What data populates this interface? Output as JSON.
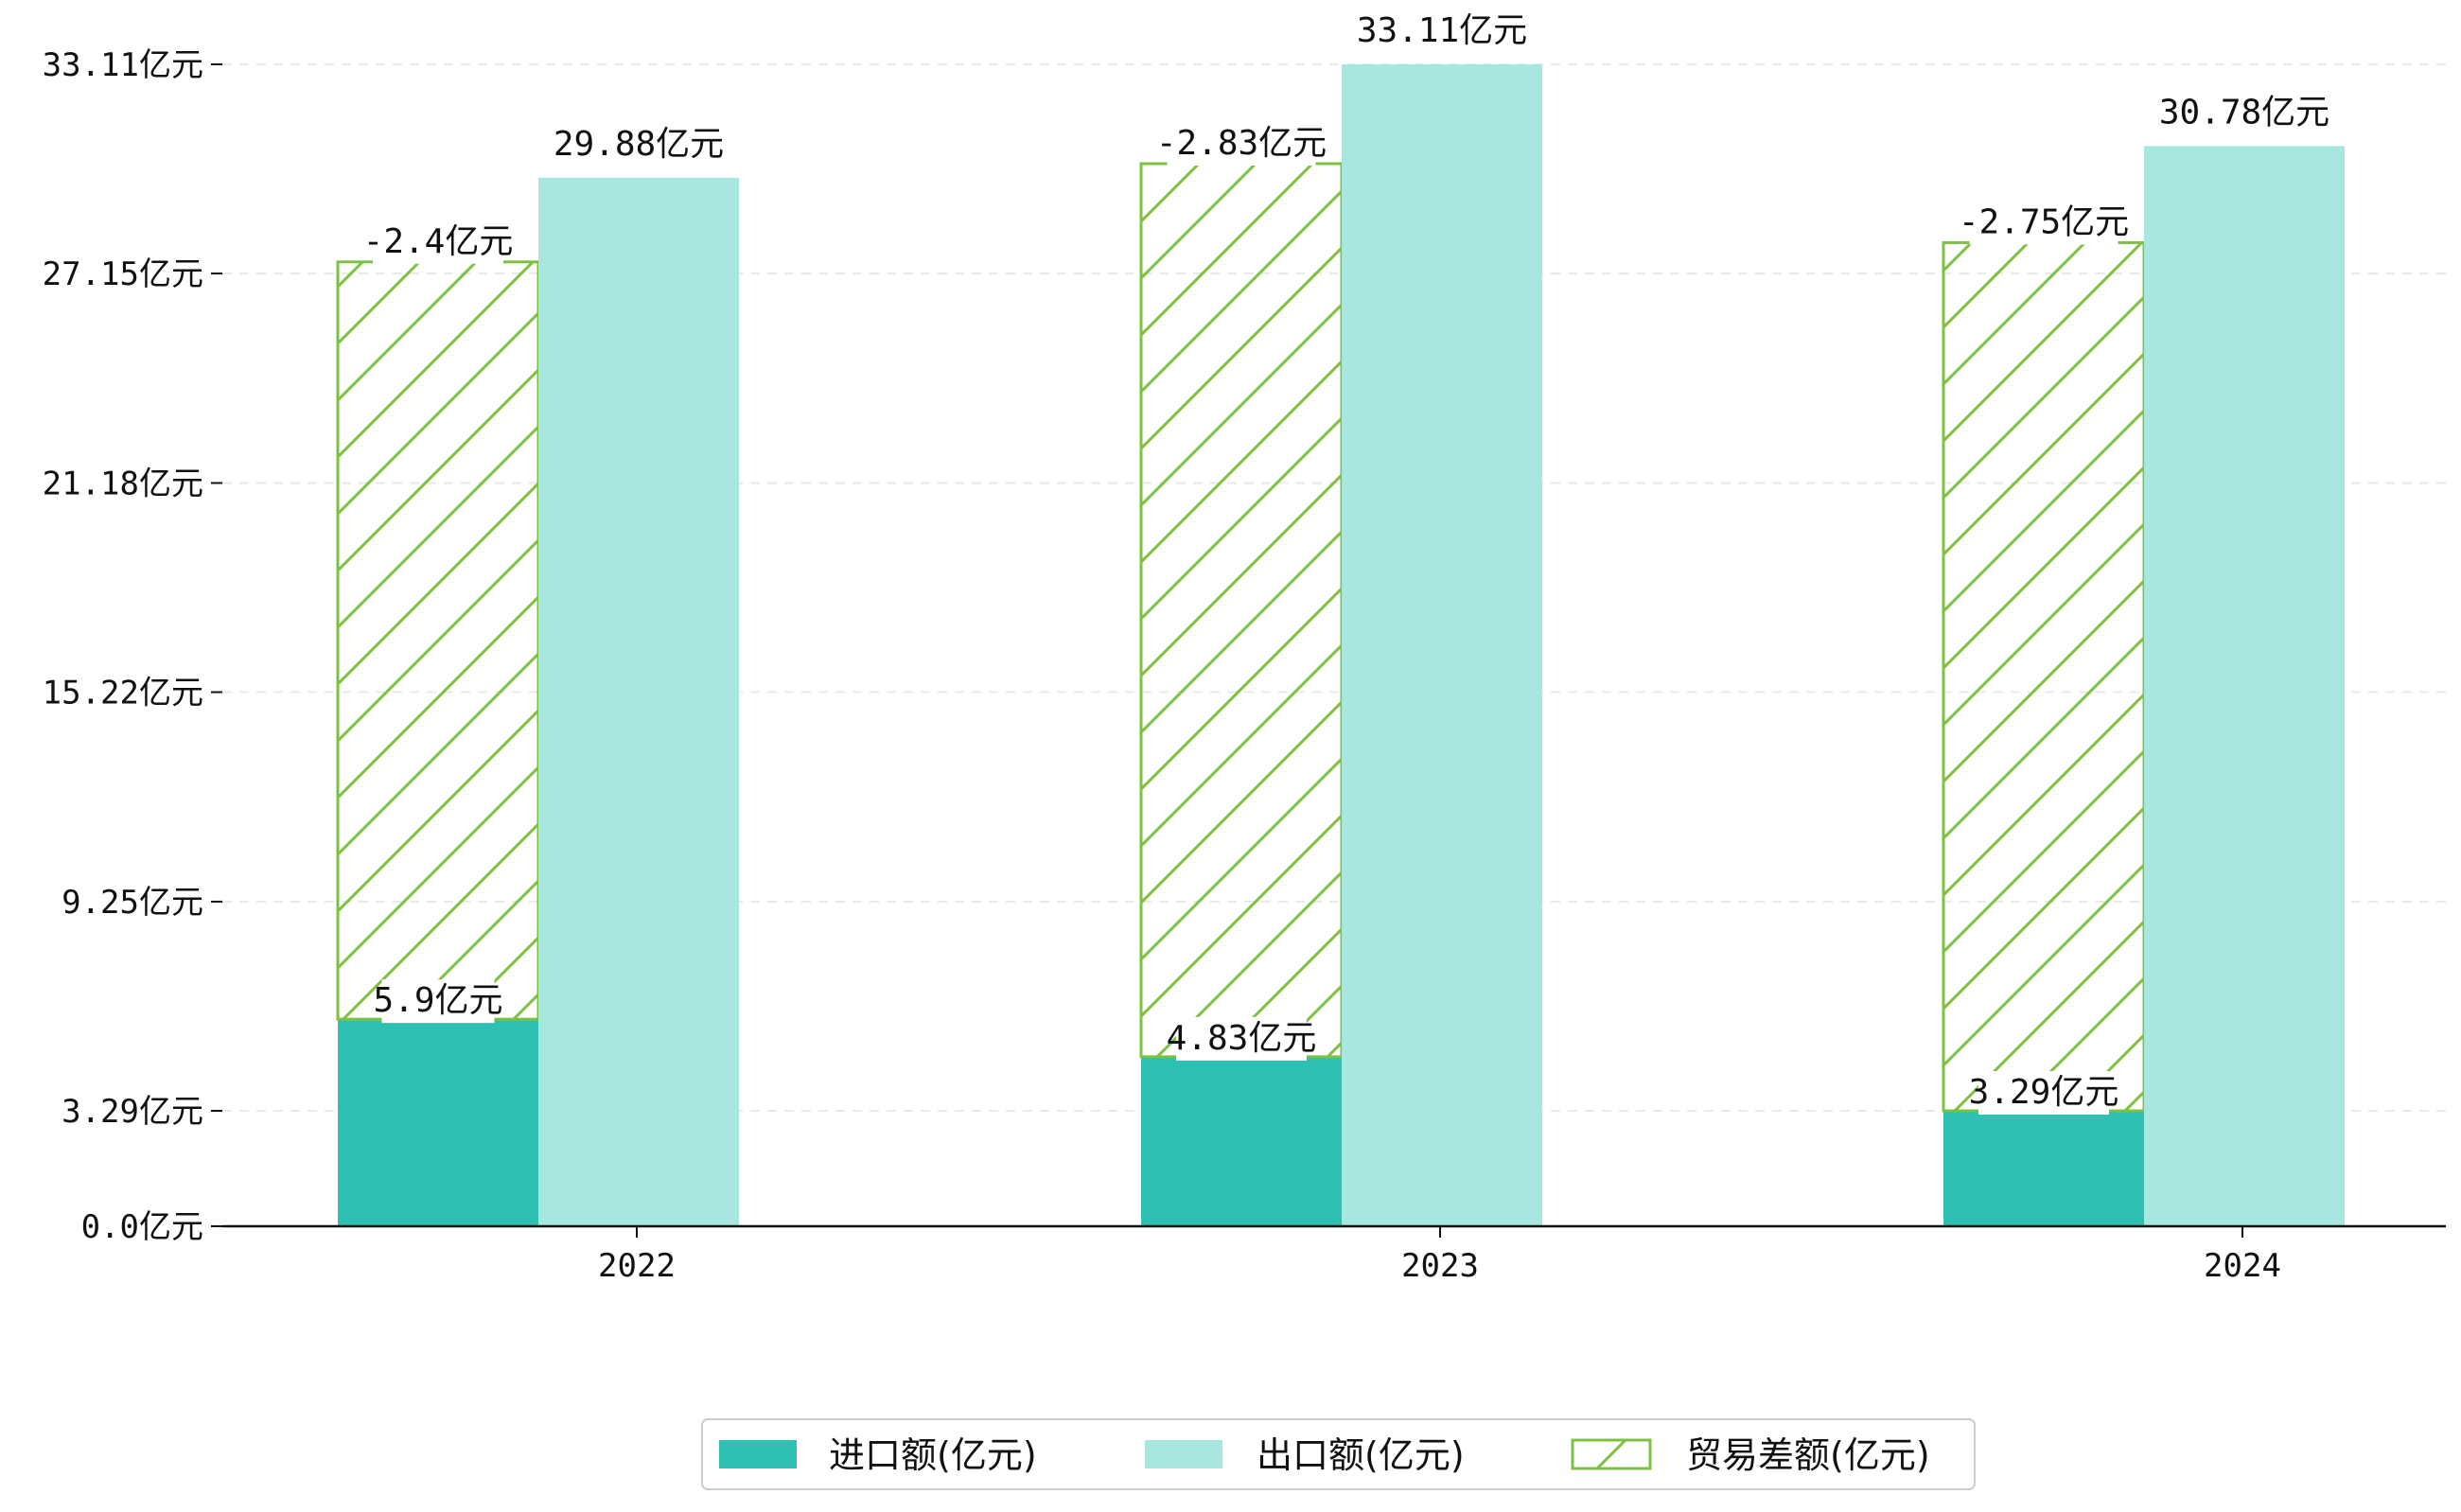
{
  "chart_data": {
    "type": "bar",
    "categories": [
      "2022",
      "2023",
      "2024"
    ],
    "unit": "亿元",
    "ylim": [
      0,
      33.11
    ],
    "yticks": [
      0.0,
      3.29,
      9.25,
      15.22,
      21.18,
      27.15,
      33.11
    ],
    "ytick_labels": [
      "0.0亿元",
      "3.29亿元",
      "9.25亿元",
      "15.22亿元",
      "21.18亿元",
      "27.15亿元",
      "33.11亿元"
    ],
    "grid": true,
    "legend_position": "bottom-center",
    "series": [
      {
        "name": "进口额(亿元)",
        "key": "import",
        "values": [
          5.9,
          4.83,
          3.29
        ],
        "labels": [
          "5.9亿元",
          "4.83亿元",
          "3.29亿元"
        ],
        "color": "#2ec1b3"
      },
      {
        "name": "出口额(亿元)",
        "key": "export",
        "values": [
          29.88,
          33.11,
          30.78
        ],
        "labels": [
          "29.88亿元",
          "33.11亿元",
          "30.78亿元"
        ],
        "color": "#a8e6e0"
      },
      {
        "name": "贸易差额(亿元)",
        "key": "balance",
        "values": [
          -2.4,
          -2.83,
          -2.75
        ],
        "labels": [
          "-2.4亿元",
          "-2.83亿元",
          "-2.75亿元"
        ],
        "color": "#7dc143",
        "hatched": true
      }
    ]
  }
}
